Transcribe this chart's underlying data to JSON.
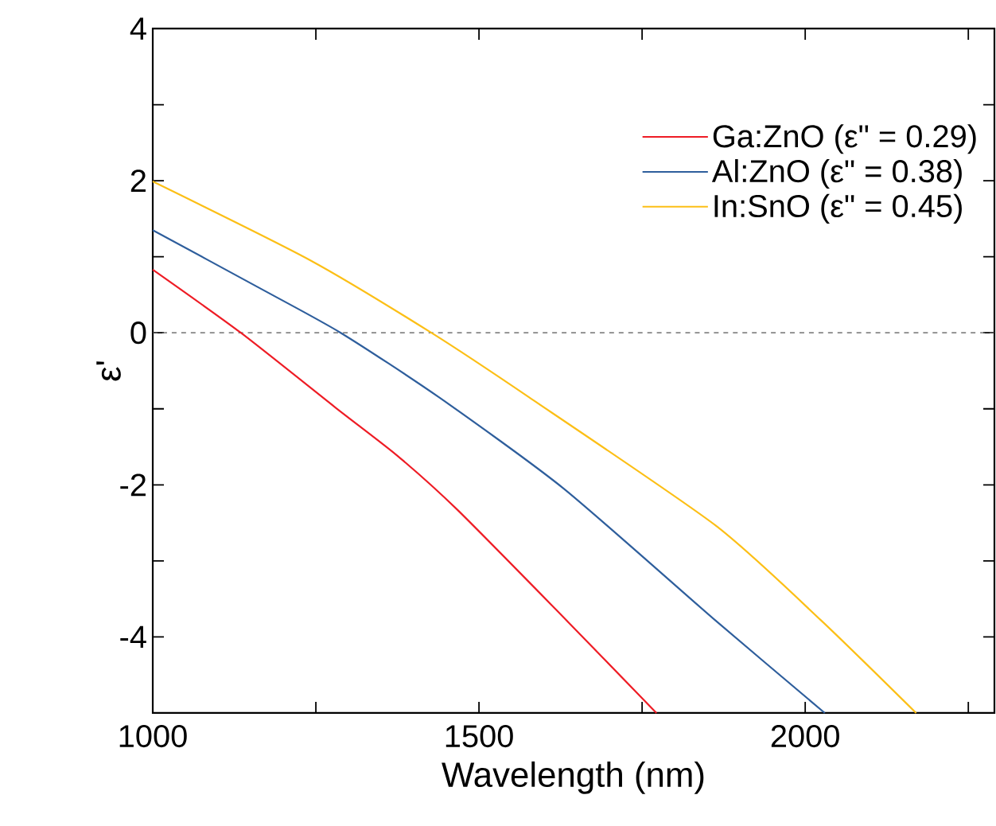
{
  "chart_data": {
    "type": "line",
    "xlabel": "Wavelength (nm)",
    "ylabel": "ε'",
    "xlim": [
      1000,
      2290
    ],
    "ylim": [
      -5,
      4
    ],
    "xticks": [
      1000,
      {
        "value": 1250,
        "label": null
      },
      1500,
      {
        "value": 1750,
        "label": null
      },
      2000,
      {
        "value": 2250,
        "label": null
      }
    ],
    "yticks": [
      -4,
      {
        "value": -3,
        "label": null
      },
      -2,
      {
        "value": -1,
        "label": null
      },
      0,
      {
        "value": 1,
        "label": null
      },
      2,
      {
        "value": 3,
        "label": null
      },
      4
    ],
    "legend": "top right",
    "marker": "none",
    "line_style": "solid",
    "ref_lines": [
      {
        "axis": "y",
        "value": 0,
        "color": "#555555",
        "line_style": "dashed"
      }
    ],
    "series": [
      {
        "name": "Ga:ZnO (ε\" = 0.29)",
        "color": "#ee1c25",
        "x": [
          1000,
          1135,
          1281,
          1374,
          1466,
          1618,
          1772
        ],
        "values": [
          0.83,
          0,
          -0.99,
          -1.61,
          -2.32,
          -3.64,
          -5
        ]
      },
      {
        "name": "Al:ZnO  (ε\" = 0.38)",
        "color": "#2e5e9c",
        "x": [
          1000,
          1159,
          1288,
          1439,
          1630,
          1862,
          2030
        ],
        "values": [
          1.35,
          0.61,
          0,
          -0.85,
          -2.05,
          -3.78,
          -5
        ]
      },
      {
        "name": "In:SnO  (ε\" = 0.45)",
        "color": "#fcbf16",
        "x": [
          1000,
          1240,
          1427,
          1577,
          1862,
          2024,
          2170
        ],
        "values": [
          1.99,
          0.96,
          0,
          -0.85,
          -2.53,
          -3.78,
          -5
        ]
      }
    ]
  }
}
